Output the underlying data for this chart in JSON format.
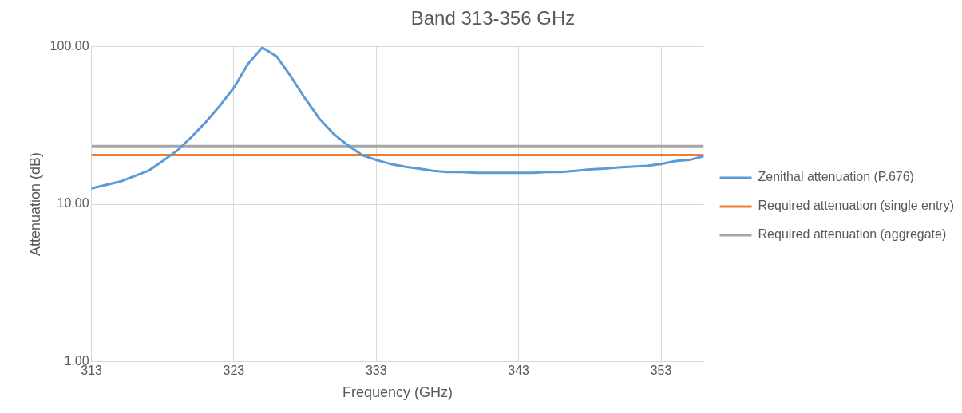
{
  "chart_data": {
    "type": "line",
    "title": "Band 313-356 GHz",
    "xlabel": "Frequency (GHz)",
    "ylabel": "Attenuation (dB)",
    "x": [
      313,
      315,
      317,
      318,
      319,
      320,
      321,
      322,
      323,
      324,
      325,
      326,
      327,
      328,
      329,
      330,
      331,
      332,
      333,
      334,
      335,
      336,
      337,
      338,
      339,
      340,
      341,
      342,
      343,
      344,
      345,
      346,
      347,
      348,
      349,
      350,
      351,
      352,
      353,
      354,
      355,
      356
    ],
    "series": [
      {
        "name": "Zenithal attenuation (P.676)",
        "color": "#5b9bd5",
        "values": [
          12.6,
          13.9,
          16.3,
          18.8,
          21.8,
          26.6,
          33,
          42,
          55,
          78,
          99,
          87,
          65,
          47,
          35,
          28,
          23.7,
          20.5,
          19.1,
          18,
          17.3,
          16.8,
          16.3,
          16,
          16,
          15.8,
          15.8,
          15.8,
          15.8,
          15.8,
          16,
          16,
          16.3,
          16.6,
          16.8,
          17.1,
          17.3,
          17.5,
          18,
          18.8,
          19.1,
          20.2
        ]
      }
    ],
    "ref_lines": [
      {
        "axis": "y",
        "value": 20.5,
        "label": "Required attenuation (single entry)",
        "color": "#ed7d31"
      },
      {
        "axis": "y",
        "value": 23.4,
        "label": "Required attenuation (aggregate)",
        "color": "#a5a5a5"
      }
    ],
    "xlim": [
      313,
      356
    ],
    "xticks": [
      313,
      323,
      333,
      343,
      353
    ],
    "ylim": [
      1,
      100
    ],
    "yticks": [
      {
        "value": 1,
        "label": "1.00"
      },
      {
        "value": 10,
        "label": "10.00"
      },
      {
        "value": 100,
        "label": "100.00"
      }
    ],
    "log": "y",
    "grid": true,
    "legend": "right",
    "marker": "none",
    "line_style": "solid"
  }
}
